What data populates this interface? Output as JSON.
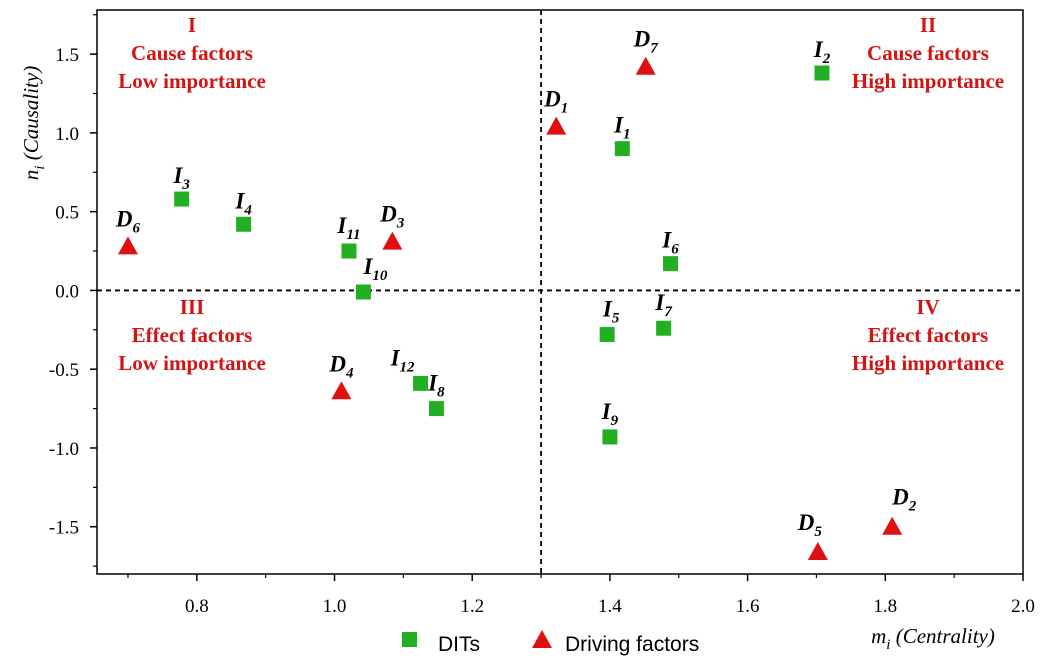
{
  "chart_data": {
    "type": "scatter",
    "xlabel": {
      "main": "m",
      "sub": "i",
      "rest": " (Centrality)"
    },
    "ylabel": {
      "main": "n",
      "sub": "i",
      "rest": " (Causality)"
    },
    "xlim": [
      0.655,
      2.0
    ],
    "ylim": [
      -1.8,
      1.78
    ],
    "x_ticks": [
      0.8,
      1.0,
      1.2,
      1.4,
      1.6,
      1.8,
      2.0
    ],
    "x_tick_labels": [
      "0.8",
      "1.0",
      "1.2",
      "1.4",
      "1.6",
      "1.8",
      "2.0"
    ],
    "y_ticks": [
      1.5,
      1.0,
      0.5,
      0.0,
      -0.5,
      -1.0,
      -1.5
    ],
    "y_tick_labels": [
      "1.5",
      "1.0",
      "0.5",
      "0.0",
      "-0.5",
      "-1.0",
      "-1.5"
    ],
    "divider_x": 1.3,
    "divider_y": 0.0,
    "grid": false,
    "legend_position": "bottom-center",
    "colors": {
      "dits": "#22b022",
      "driving": "#e01010",
      "quadrant_text": "#d41414"
    },
    "quadrants": [
      {
        "id": "I",
        "lines": [
          "I",
          "Cause factors",
          "Low importance"
        ],
        "position": "top-left"
      },
      {
        "id": "II",
        "lines": [
          "II",
          "Cause factors",
          "High importance"
        ],
        "position": "top-right"
      },
      {
        "id": "III",
        "lines": [
          "III",
          "Effect factors",
          "Low importance"
        ],
        "position": "bottom-left"
      },
      {
        "id": "IV",
        "lines": [
          "IV",
          "Effect factors",
          "High importance"
        ],
        "position": "bottom-right"
      }
    ],
    "series": [
      {
        "name": "DITs",
        "marker": "square",
        "points": [
          {
            "label": "I",
            "sub": "1",
            "x": 1.418,
            "y": 0.9
          },
          {
            "label": "I",
            "sub": "2",
            "x": 1.708,
            "y": 1.38
          },
          {
            "label": "I",
            "sub": "3",
            "x": 0.778,
            "y": 0.58
          },
          {
            "label": "I",
            "sub": "4",
            "x": 0.868,
            "y": 0.42
          },
          {
            "label": "I",
            "sub": "5",
            "x": 1.396,
            "y": -0.28
          },
          {
            "label": "I",
            "sub": "6",
            "x": 1.488,
            "y": 0.17
          },
          {
            "label": "I",
            "sub": "7",
            "x": 1.478,
            "y": -0.24
          },
          {
            "label": "I",
            "sub": "8",
            "x": 1.148,
            "y": -0.75
          },
          {
            "label": "I",
            "sub": "9",
            "x": 1.4,
            "y": -0.93
          },
          {
            "label": "I",
            "sub": "10",
            "x": 1.042,
            "y": -0.01
          },
          {
            "label": "I",
            "sub": "11",
            "x": 1.021,
            "y": 0.25
          },
          {
            "label": "I",
            "sub": "12",
            "x": 1.125,
            "y": -0.59
          }
        ]
      },
      {
        "name": "Driving factors",
        "marker": "triangle",
        "points": [
          {
            "label": "D",
            "sub": "1",
            "x": 1.322,
            "y": 1.04
          },
          {
            "label": "D",
            "sub": "2",
            "x": 1.81,
            "y": -1.5
          },
          {
            "label": "D",
            "sub": "3",
            "x": 1.084,
            "y": 0.31
          },
          {
            "label": "D",
            "sub": "4",
            "x": 1.01,
            "y": -0.64
          },
          {
            "label": "D",
            "sub": "5",
            "x": 1.702,
            "y": -1.66
          },
          {
            "label": "D",
            "sub": "6",
            "x": 0.7,
            "y": 0.28
          },
          {
            "label": "D",
            "sub": "7",
            "x": 1.452,
            "y": 1.42
          }
        ]
      }
    ]
  }
}
